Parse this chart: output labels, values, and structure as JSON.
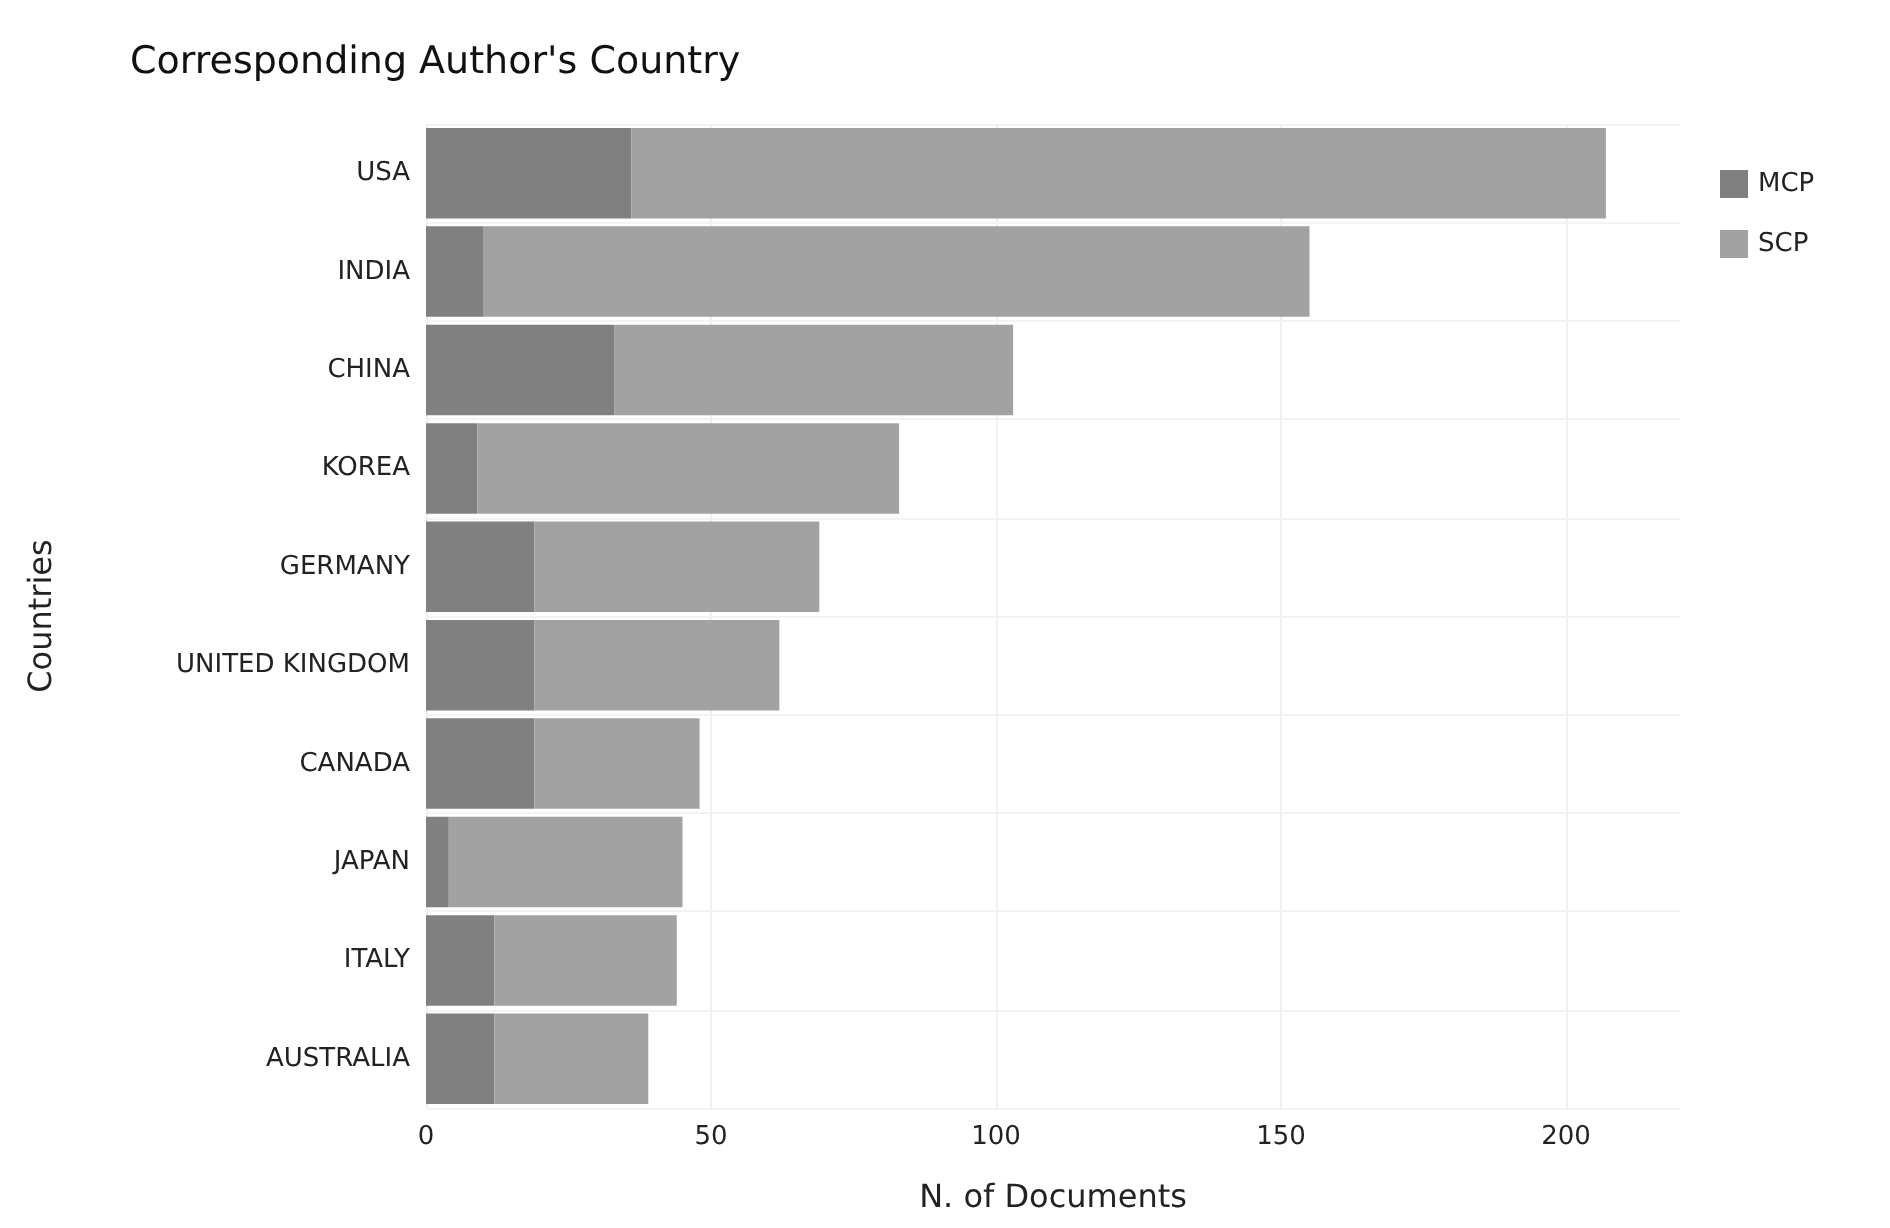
{
  "chart_data": {
    "type": "bar",
    "orientation": "horizontal",
    "stacked": true,
    "title": "Corresponding Author's Country",
    "xlabel": "N. of Documents",
    "ylabel": "Countries",
    "categories": [
      "USA",
      "INDIA",
      "CHINA",
      "KOREA",
      "GERMANY",
      "UNITED KINGDOM",
      "CANADA",
      "JAPAN",
      "ITALY",
      "AUSTRALIA"
    ],
    "series": [
      {
        "name": "MCP",
        "color": "#808080",
        "values": [
          36,
          10,
          33,
          9,
          19,
          19,
          19,
          4,
          12,
          12
        ]
      },
      {
        "name": "SCP",
        "color": "#a2a2a2",
        "values": [
          171,
          145,
          70,
          74,
          50,
          43,
          29,
          41,
          32,
          27
        ]
      }
    ],
    "xlim": [
      0,
      220
    ],
    "xticks": [
      0,
      50,
      100,
      150,
      200
    ],
    "grid": true,
    "legend": "right"
  }
}
